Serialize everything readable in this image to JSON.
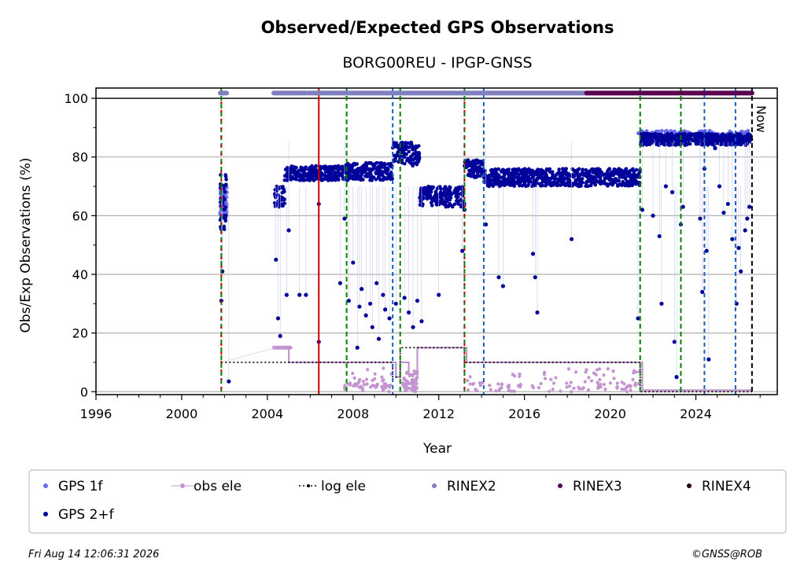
{
  "chart_data": {
    "type": "scatter",
    "title": "Observed/Expected GPS Observations",
    "subtitle": "BORG00REU - IPGP-GNSS",
    "xlabel": "Year",
    "ylabel": "Obs/Exp Observations (%)",
    "xlim": [
      1996,
      2027.8
    ],
    "ylim": [
      -1,
      103.5
    ],
    "x_ticks": [
      1996,
      2000,
      2004,
      2008,
      2012,
      2016,
      2020,
      2024
    ],
    "y_ticks": [
      0,
      20,
      40,
      60,
      80,
      100
    ],
    "grid": "horizontal",
    "now_label": "Now",
    "now_x": 2026.62,
    "colors": {
      "gps_1f": "#6a6aee",
      "gps_2f": "#00009a",
      "obs_ele": "#c494d0",
      "log_ele": "#000000",
      "rinex2": "#8080c0",
      "rinex3": "#5a0050",
      "rinex4": "#200010",
      "red_line": "#d00000",
      "green_line": "#008000",
      "blue_line": "#1060c0"
    },
    "vlines_red": [
      2006.4
    ],
    "vlines_green": [
      2001.85,
      2007.7,
      2010.2,
      2013.2,
      2021.4,
      2023.3
    ],
    "vlines_blue": [
      2009.85,
      2014.1,
      2024.4,
      2025.85
    ],
    "vlines_red_green": [
      2001.85,
      2013.2
    ],
    "rinex_bars": [
      {
        "name": "RINEX2",
        "x": [
          [
            2001.8,
            2002.1
          ],
          [
            2004.3,
            2005.8
          ],
          [
            2005.9,
            2018.9
          ]
        ],
        "y": 101.8
      },
      {
        "name": "RINEX3",
        "x": [
          [
            2018.9,
            2026.62
          ]
        ],
        "y": 101.8
      }
    ],
    "series": [
      {
        "name": "GPS 1f",
        "segments": [
          {
            "x": [
              2001.8,
              2002.1
            ],
            "y": [
              60,
              70
            ]
          },
          {
            "x": [
              2021.3,
              2026.6
            ],
            "y": [
              87,
              89
            ]
          }
        ]
      },
      {
        "name": "GPS 2+f",
        "segments": [
          {
            "x": [
              2001.8,
              2002.1
            ],
            "y": [
              55,
              75
            ]
          },
          {
            "x": [
              2004.3,
              2004.8
            ],
            "y": [
              63,
              70
            ]
          },
          {
            "x": [
              2004.8,
              2006.0
            ],
            "y": [
              72,
              77
            ]
          },
          {
            "x": [
              2006.0,
              2007.6
            ],
            "y": [
              72,
              77
            ]
          },
          {
            "x": [
              2007.6,
              2009.85
            ],
            "y": [
              72,
              78
            ]
          },
          {
            "x": [
              2009.85,
              2010.3
            ],
            "y": [
              78,
              85
            ]
          },
          {
            "x": [
              2010.3,
              2011.1
            ],
            "y": [
              77,
              85
            ]
          },
          {
            "x": [
              2011.1,
              2013.2
            ],
            "y": [
              63,
              70
            ]
          },
          {
            "x": [
              2013.2,
              2014.1
            ],
            "y": [
              73,
              79
            ]
          },
          {
            "x": [
              2014.1,
              2021.4
            ],
            "y": [
              70,
              76
            ]
          },
          {
            "x": [
              2021.4,
              2026.6
            ],
            "y": [
              84,
              88
            ]
          }
        ],
        "points": [
          [
            2001.85,
            31
          ],
          [
            2001.9,
            41
          ],
          [
            2002.2,
            3.5
          ],
          [
            2004.4,
            45
          ],
          [
            2004.5,
            25
          ],
          [
            2004.6,
            19
          ],
          [
            2004.9,
            33
          ],
          [
            2005.0,
            55
          ],
          [
            2005.5,
            33
          ],
          [
            2005.8,
            33
          ],
          [
            2006.4,
            17
          ],
          [
            2006.4,
            64
          ],
          [
            2007.4,
            37
          ],
          [
            2007.6,
            59
          ],
          [
            2007.8,
            31
          ],
          [
            2008.0,
            44
          ],
          [
            2008.2,
            15
          ],
          [
            2008.3,
            29
          ],
          [
            2008.4,
            35
          ],
          [
            2008.6,
            26
          ],
          [
            2008.8,
            30
          ],
          [
            2008.9,
            22
          ],
          [
            2009.1,
            37
          ],
          [
            2009.2,
            18
          ],
          [
            2009.4,
            33
          ],
          [
            2009.5,
            28
          ],
          [
            2009.7,
            25
          ],
          [
            2010.0,
            30
          ],
          [
            2010.4,
            32
          ],
          [
            2010.6,
            27
          ],
          [
            2010.8,
            22
          ],
          [
            2011.0,
            31
          ],
          [
            2011.2,
            24
          ],
          [
            2012.0,
            33
          ],
          [
            2013.1,
            48
          ],
          [
            2013.2,
            62
          ],
          [
            2014.2,
            57
          ],
          [
            2014.8,
            39
          ],
          [
            2015.0,
            36
          ],
          [
            2016.4,
            47
          ],
          [
            2016.5,
            39
          ],
          [
            2016.6,
            27
          ],
          [
            2018.2,
            52
          ],
          [
            2021.3,
            25
          ],
          [
            2021.5,
            62
          ],
          [
            2022.0,
            60
          ],
          [
            2022.3,
            53
          ],
          [
            2022.4,
            30
          ],
          [
            2022.6,
            70
          ],
          [
            2022.9,
            68
          ],
          [
            2023.0,
            17
          ],
          [
            2023.1,
            5
          ],
          [
            2023.3,
            57
          ],
          [
            2023.4,
            63
          ],
          [
            2023.6,
            86
          ],
          [
            2024.2,
            59
          ],
          [
            2024.3,
            34
          ],
          [
            2024.4,
            76
          ],
          [
            2024.5,
            48
          ],
          [
            2024.6,
            11
          ],
          [
            2024.9,
            83
          ],
          [
            2025.1,
            70
          ],
          [
            2025.3,
            61
          ],
          [
            2025.5,
            64
          ],
          [
            2025.7,
            52
          ],
          [
            2025.9,
            30
          ],
          [
            2026.0,
            49
          ],
          [
            2026.1,
            41
          ],
          [
            2026.3,
            55
          ],
          [
            2026.4,
            59
          ],
          [
            2026.5,
            63
          ]
        ]
      },
      {
        "name": "obs ele",
        "steps": [
          [
            2004.3,
            15
          ],
          [
            2005.0,
            10
          ],
          [
            2007.6,
            10
          ],
          [
            2009.8,
            10
          ],
          [
            2010.0,
            5
          ],
          [
            2010.2,
            10
          ],
          [
            2010.6,
            6
          ],
          [
            2011.0,
            15
          ],
          [
            2013.2,
            15
          ],
          [
            2013.3,
            10
          ],
          [
            2021.4,
            10
          ],
          [
            2021.5,
            0.5
          ],
          [
            2026.6,
            0.5
          ]
        ]
      },
      {
        "name": "log ele",
        "steps": [
          [
            2001.85,
            10
          ],
          [
            2009.85,
            10
          ],
          [
            2009.85,
            5
          ],
          [
            2010.2,
            5
          ],
          [
            2010.2,
            15
          ],
          [
            2013.2,
            15
          ],
          [
            2013.2,
            10
          ],
          [
            2021.4,
            10
          ],
          [
            2021.4,
            0
          ],
          [
            2026.62,
            0
          ]
        ]
      }
    ],
    "legend": {
      "position": "bottom",
      "entries": [
        "GPS 1f",
        "obs ele",
        "log ele",
        "RINEX2",
        "RINEX3",
        "RINEX4",
        "GPS 2+f"
      ]
    }
  },
  "footer": {
    "timestamp": "Fri Aug 14 12:06:31 2026",
    "credit": "©GNSS@ROB"
  }
}
